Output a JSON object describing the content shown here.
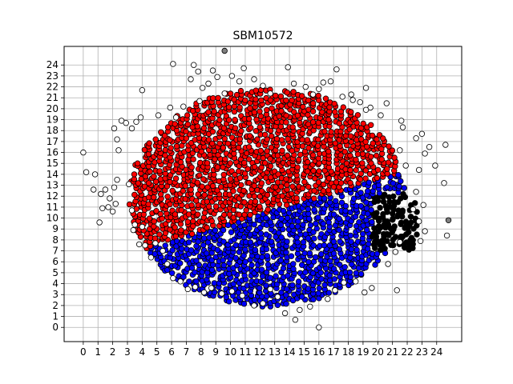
{
  "chart_data": {
    "type": "scatter",
    "title": "SBM10572",
    "xlabel": "",
    "ylabel": "",
    "xlim": [
      -1.3,
      25.7
    ],
    "ylim": [
      -1.3,
      25.7
    ],
    "x_ticks": [
      "0",
      "1",
      "2",
      "3",
      "4",
      "5",
      "6",
      "7",
      "8",
      "9",
      "10",
      "11",
      "12",
      "13",
      "14",
      "15",
      "16",
      "17",
      "18",
      "19",
      "20",
      "21",
      "22",
      "23",
      "24"
    ],
    "y_ticks": [
      "0",
      "1",
      "2",
      "3",
      "4",
      "5",
      "6",
      "7",
      "8",
      "9",
      "10",
      "11",
      "12",
      "13",
      "14",
      "15",
      "16",
      "17",
      "18",
      "19",
      "20",
      "21",
      "22",
      "23",
      "24"
    ],
    "grid": true,
    "legend": "none",
    "colors": {
      "cluster_red": "#ff0000",
      "cluster_blue": "#0000ff",
      "cluster_black": "#000000",
      "outlier_white": "#ffffff",
      "outlier_gray": "#808080",
      "edge": "#000000"
    },
    "series": [
      {
        "color": "red",
        "region": "upper-left cluster",
        "x_range": [
          2.5,
          20.5
        ],
        "y_range": [
          7.0,
          21.5
        ],
        "points_description": "dense cloud, upper-left of diagonal boundary from (5,7.5) to (20,13.5)"
      },
      {
        "color": "blue",
        "region": "lower-middle cluster",
        "x_range": [
          5.0,
          21.5
        ],
        "y_range": [
          2.0,
          14.0
        ],
        "points_description": "dense cloud below the diagonal boundary"
      },
      {
        "color": "black",
        "region": "right cluster",
        "x_range": [
          19.5,
          23.0
        ],
        "y_range": [
          7.0,
          12.0
        ],
        "points_description": "small dense group on the right"
      },
      {
        "color": "white",
        "region": "outliers ring",
        "points": [
          [
            0,
            16
          ],
          [
            0.2,
            14.2
          ],
          [
            0.8,
            14
          ],
          [
            0.7,
            12.6
          ],
          [
            1.2,
            12.2
          ],
          [
            1.1,
            9.6
          ],
          [
            1.3,
            10.9
          ],
          [
            1.5,
            12.6
          ],
          [
            1.7,
            11
          ],
          [
            1.8,
            11.8
          ],
          [
            2,
            10.6
          ],
          [
            2.2,
            11.3
          ],
          [
            2.1,
            12.8
          ],
          [
            2.3,
            13.5
          ],
          [
            2.4,
            16.2
          ],
          [
            2.3,
            17.2
          ],
          [
            2.1,
            18.2
          ],
          [
            2.6,
            18.9
          ],
          [
            2.9,
            18.7
          ],
          [
            3.3,
            18.2
          ],
          [
            3.6,
            18.8
          ],
          [
            3.9,
            19.2
          ],
          [
            4,
            21.7
          ],
          [
            3.1,
            13.1
          ],
          [
            3.3,
            10.7
          ],
          [
            3.5,
            9.4
          ],
          [
            3.4,
            8.9
          ],
          [
            4,
            9.2
          ],
          [
            3.8,
            7.6
          ],
          [
            4.2,
            7.5
          ],
          [
            4.6,
            6.4
          ],
          [
            5.1,
            19.4
          ],
          [
            5.9,
            20.1
          ],
          [
            6.3,
            19.2
          ],
          [
            6.1,
            24.1
          ],
          [
            7.5,
            24
          ],
          [
            7.3,
            22.7
          ],
          [
            7.8,
            23.4
          ],
          [
            8.1,
            21.9
          ],
          [
            8.5,
            22.3
          ],
          [
            8.8,
            23.5
          ],
          [
            9.1,
            22.9
          ],
          [
            9.6,
            21.4
          ],
          [
            10.1,
            23
          ],
          [
            10.6,
            22.5
          ],
          [
            10.9,
            23.7
          ],
          [
            11.6,
            22.7
          ],
          [
            12.2,
            22.1
          ],
          [
            12.7,
            21.4
          ],
          [
            13.9,
            23.8
          ],
          [
            14.3,
            22.3
          ],
          [
            15.1,
            22
          ],
          [
            15.6,
            21.3
          ],
          [
            16,
            21.8
          ],
          [
            16.3,
            22.4
          ],
          [
            16.8,
            22.5
          ],
          [
            17.2,
            23.6
          ],
          [
            17.6,
            21.1
          ],
          [
            18.3,
            20.8
          ],
          [
            18.8,
            20.6
          ],
          [
            19.2,
            21.9
          ],
          [
            19.5,
            20.1
          ],
          [
            20.2,
            19.4
          ],
          [
            20.6,
            20.5
          ],
          [
            21.6,
            18.9
          ],
          [
            21.7,
            18.3
          ],
          [
            21.5,
            16.2
          ],
          [
            21.9,
            14.8
          ],
          [
            22.6,
            17.3
          ],
          [
            23,
            17.7
          ],
          [
            23.2,
            15.9
          ],
          [
            23.5,
            16.5
          ],
          [
            23.9,
            14.8
          ],
          [
            24.6,
            16.7
          ],
          [
            24.5,
            13.2
          ],
          [
            22.8,
            14.4
          ],
          [
            22.6,
            12.4
          ],
          [
            23.1,
            11.2
          ],
          [
            22.4,
            10.8
          ],
          [
            22.8,
            9.7
          ],
          [
            23.2,
            8.8
          ],
          [
            24.7,
            8.4
          ],
          [
            22.9,
            7.9
          ],
          [
            21.5,
            7.8
          ],
          [
            21.2,
            6.9
          ],
          [
            20.7,
            5.8
          ],
          [
            21.3,
            3.4
          ],
          [
            19.6,
            3.6
          ],
          [
            19.1,
            3.2
          ],
          [
            18.5,
            4.2
          ],
          [
            17.7,
            4.1
          ],
          [
            17.1,
            3.4
          ],
          [
            16.6,
            2.6
          ],
          [
            16,
            0
          ],
          [
            15.4,
            1.9
          ],
          [
            14.7,
            1.6
          ],
          [
            14.4,
            0.7
          ],
          [
            13.7,
            1.3
          ],
          [
            13.2,
            2.8
          ],
          [
            12.7,
            3.5
          ],
          [
            12.2,
            2.2
          ],
          [
            11.6,
            2
          ],
          [
            10.8,
            2.9
          ],
          [
            10.1,
            3.3
          ],
          [
            9.4,
            3.1
          ],
          [
            8.7,
            3.6
          ],
          [
            8.2,
            3.2
          ],
          [
            7.6,
            3.7
          ],
          [
            7.1,
            3.5
          ],
          [
            6.6,
            4.2
          ],
          [
            6.1,
            4.5
          ],
          [
            5.7,
            5.8
          ],
          [
            5.4,
            7
          ],
          [
            4.9,
            7.7
          ],
          [
            18.2,
            21.3
          ],
          [
            19.2,
            19.9
          ],
          [
            7.9,
            20.7
          ],
          [
            6.8,
            20.2
          ]
        ]
      },
      {
        "color": "gray",
        "region": "isolated outliers",
        "points": [
          [
            9.6,
            25.3
          ],
          [
            24.8,
            9.8
          ]
        ]
      }
    ]
  }
}
